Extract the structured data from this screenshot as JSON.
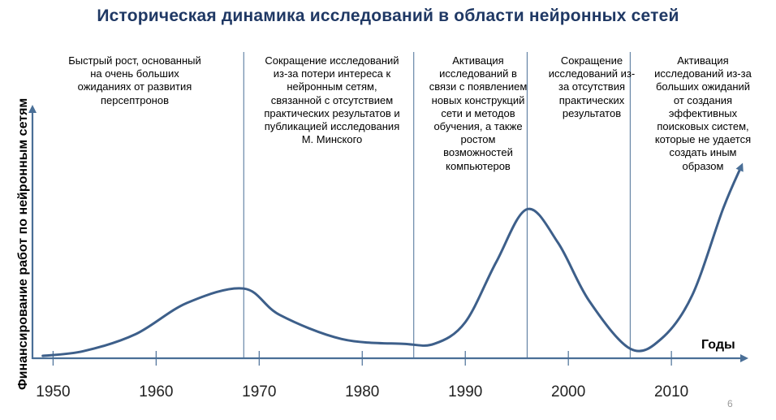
{
  "slide": {
    "title": "Историческая динамика исследований в области нейронных сетей",
    "page_number": "6"
  },
  "chart_data": {
    "type": "line",
    "title": "Историческая динамика исследований в области нейронных сетей",
    "xlabel": "Годы",
    "ylabel": "Финансирование работ по нейронным сетям",
    "xlim": [
      1948,
      2017
    ],
    "ylim": [
      0,
      100
    ],
    "x_ticks": [
      1950,
      1960,
      1970,
      1980,
      1990,
      2000,
      2010
    ],
    "x_tick_labels": [
      "1950",
      "1960",
      "1970",
      "1980",
      "1990",
      "2000",
      "2010"
    ],
    "y_ticks": [],
    "grid": false,
    "legend": "none",
    "line_color": "#3d5f8a",
    "period_boundaries": [
      1968.5,
      1985,
      1996,
      2006
    ],
    "series": [
      {
        "x": [
          1949,
          1953,
          1958,
          1963,
          1968.5,
          1972,
          1978,
          1984,
          1987,
          1990,
          1993,
          1996,
          1999,
          2002,
          2006,
          2009,
          2012,
          2015,
          2016.8
        ],
        "y": [
          1,
          3,
          10,
          23,
          29,
          18,
          8,
          6,
          6,
          15,
          40,
          62,
          48,
          24,
          4,
          8,
          26,
          62,
          80
        ]
      }
    ],
    "annotations": [
      "Быстрый рост, основанный\nна очень больших\nожиданиях от развития\nперсептронов",
      "Сокращение исследований\nиз-за потери интереса к\nнейронным сетям,\nсвязанной с  отсутствием\nпрактических результатов и\nпубликацией исследования\nМ. Минского",
      "Активация\nисследований в\nсвязи с появлением\nновых конструкций\nсети и методов\nобучения, а также\nростом\nвозможностей\nкомпьютеров",
      "Сокращение\nисследований из-\nза  отсутствия\nпрактических\nрезультатов",
      "Активация\nисследований из-за\nбольших ожиданий\nот создания\nэффективных\nпоисковых систем,\nкоторые не удается\nсоздать иным\nобразом"
    ]
  }
}
